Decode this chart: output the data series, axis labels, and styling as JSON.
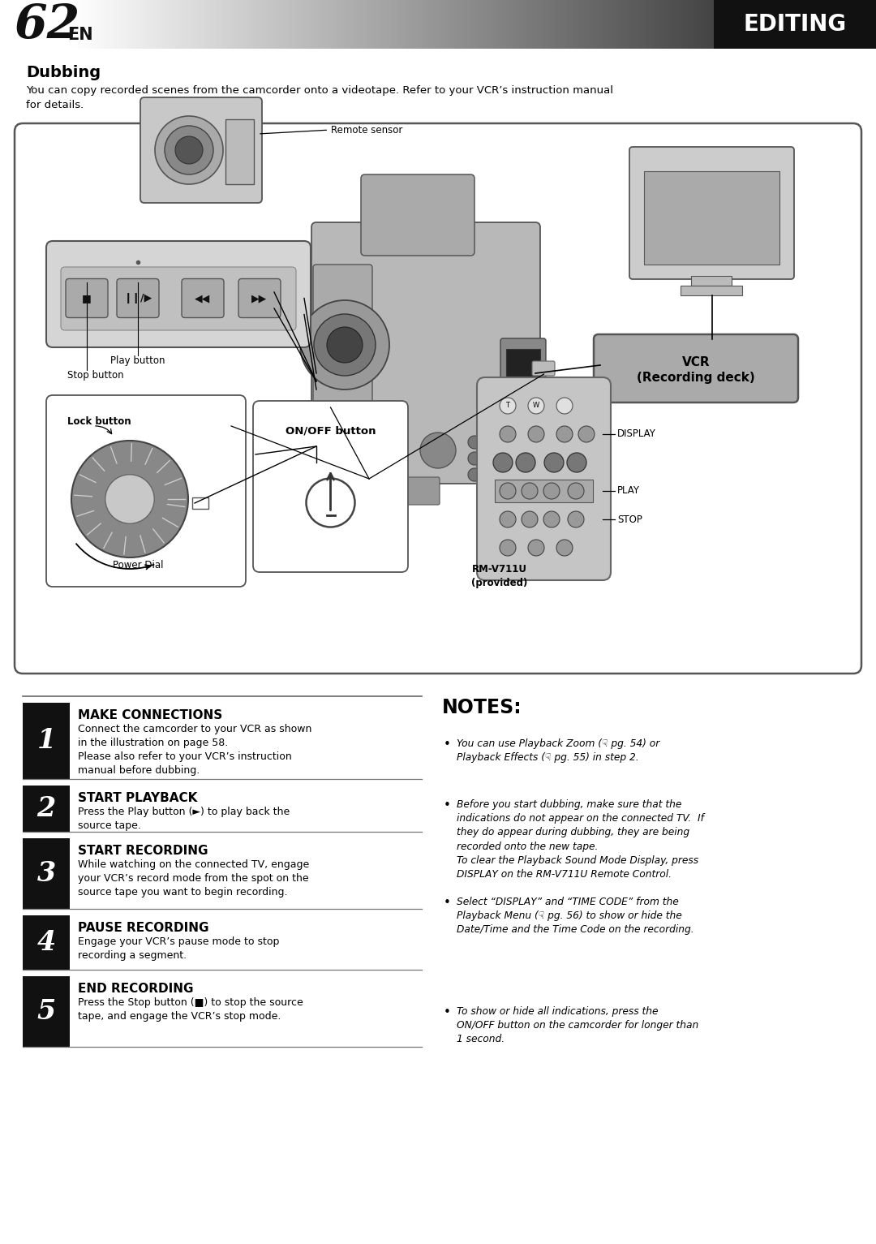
{
  "page_num": "62",
  "page_suffix": "EN",
  "section_title": "EDITING",
  "bg_color": "#ffffff",
  "dubbing_title": "Dubbing",
  "dubbing_intro": "You can copy recorded scenes from the camcorder onto a videotape. Refer to your VCR’s instruction manual\nfor details.",
  "steps": [
    {
      "num": "1",
      "title": "MAKE CONNECTIONS",
      "body": "Connect the camcorder to your VCR as shown\nin the illustration on page 58.\nPlease also refer to your VCR’s instruction\nmanual before dubbing."
    },
    {
      "num": "2",
      "title": "START PLAYBACK",
      "body": "Press the Play button (►) to play back the\nsource tape."
    },
    {
      "num": "3",
      "title": "START RECORDING",
      "body": "While watching on the connected TV, engage\nyour VCR’s record mode from the spot on the\nsource tape you want to begin recording."
    },
    {
      "num": "4",
      "title": "PAUSE RECORDING",
      "body": "Engage your VCR’s pause mode to stop\nrecording a segment."
    },
    {
      "num": "5",
      "title": "END RECORDING",
      "body": "Press the Stop button (■) to stop the source\ntape, and engage the VCR’s stop mode."
    }
  ],
  "notes_title": "NOTES:",
  "note_items": [
    "You can use Playback Zoom (☟ pg. 54) or\nPlayback Effects (☟ pg. 55) in step 2.",
    "Before you start dubbing, make sure that the\nindications do not appear on the connected TV.  If\nthey do appear during dubbing, they are being\nrecorded onto the new tape.\nTo clear the Playback Sound Mode Display, press\nDISPLAY on the RM-V711U Remote Control.",
    "Select “DISPLAY” and “TIME CODE” from the\nPlayback Menu (☟ pg. 56) to show or hide the\nDate/Time and the Time Code on the recording.",
    "To show or hide all indications, press the\nON/OFF button on the camcorder for longer than\n1 second."
  ],
  "diag": {
    "remote_sensor": "Remote sensor",
    "vcr_label": "VCR\n(Recording deck)",
    "play_btn": "Play button",
    "stop_btn": "Stop button",
    "lock_btn": "Lock button",
    "power_dial": "Power Dial",
    "onoff_btn": "ON/OFF button",
    "rm_label": "RM-V711U\n(provided)",
    "display_lbl": "DISPLAY",
    "play_lbl": "PLAY",
    "stop_lbl": "STOP"
  }
}
